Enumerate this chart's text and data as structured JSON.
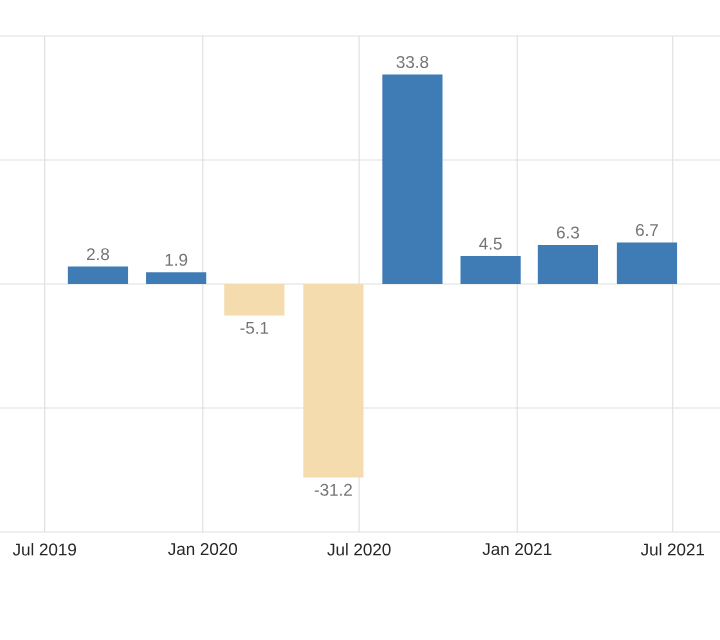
{
  "chart_data": {
    "type": "bar",
    "x": [
      "2019-09",
      "2019-12",
      "2020-03",
      "2020-06",
      "2020-09",
      "2020-12",
      "2021-03",
      "2021-06"
    ],
    "values": [
      2.8,
      1.9,
      -5.1,
      -31.2,
      33.8,
      4.5,
      6.3,
      6.7
    ],
    "colors": [
      "#3f7cb6",
      "#3f7cb6",
      "#f4dcae",
      "#f4dcae",
      "#3f7cb6",
      "#3f7cb6",
      "#3f7cb6",
      "#3f7cb6"
    ],
    "xlim": [
      "2019-05-10",
      "2021-08-25"
    ],
    "xticks": [
      {
        "value": "2019-07",
        "label": "Jul 2019"
      },
      {
        "value": "2020-01",
        "label": "Jan 2020"
      },
      {
        "value": "2020-07",
        "label": "Jul 2020"
      },
      {
        "value": "2021-01",
        "label": "Jan 2021"
      },
      {
        "value": "2021-07",
        "label": "Jul 2021"
      }
    ],
    "ylim": [
      -40,
      40
    ],
    "yticks": [
      {
        "value": -40,
        "label": null
      },
      {
        "value": -20,
        "label": null
      },
      {
        "value": 0,
        "label": null
      },
      {
        "value": 20,
        "label": null
      },
      {
        "value": 40,
        "label": null
      }
    ],
    "tick_labels": "x",
    "grid": true,
    "data_labels": true
  }
}
